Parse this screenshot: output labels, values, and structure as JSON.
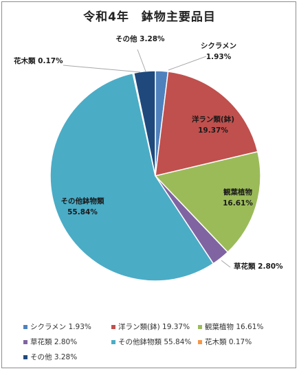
{
  "title": "令和4年　鉢物主要品目",
  "chart_data": {
    "type": "pie",
    "title": "令和4年　鉢物主要品目",
    "slices": [
      {
        "name": "シクラメン",
        "value": 1.93,
        "label": "1.93%",
        "color": "#4f81bd"
      },
      {
        "name": "洋ラン類(鉢)",
        "value": 19.37,
        "label": "19.37%",
        "color": "#c0504d"
      },
      {
        "name": "観葉植物",
        "value": 16.61,
        "label": "16.61%",
        "color": "#9bbb59"
      },
      {
        "name": "草花類",
        "value": 2.8,
        "label": "2.80%",
        "color": "#8064a2"
      },
      {
        "name": "その他鉢物類",
        "value": 55.84,
        "label": "55.84%",
        "color": "#4bacc6"
      },
      {
        "name": "花木類",
        "value": 0.17,
        "label": "0.17%",
        "color": "#f79646"
      },
      {
        "name": "その他",
        "value": 3.28,
        "label": "3.28%",
        "color": "#1f497d"
      }
    ],
    "legend_position": "bottom"
  }
}
